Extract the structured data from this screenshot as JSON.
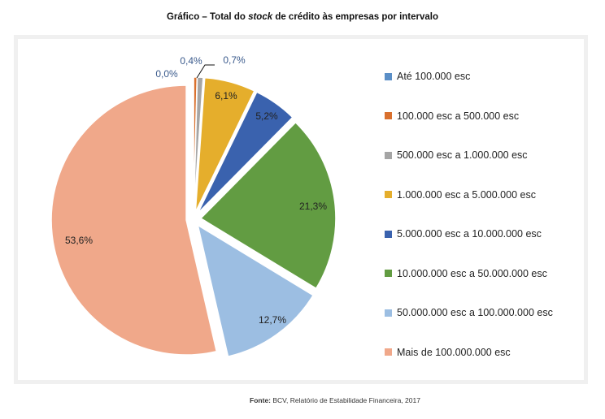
{
  "title": {
    "prefix": "Gráfico – Total do ",
    "italic": "stock",
    "suffix": " de crédito às empresas por intervalo"
  },
  "source": {
    "label": "Fonte:",
    "text": " BCV, Relatório de Estabilidade Financeira, 2017"
  },
  "legend": [
    {
      "label": "Até 100.000 esc",
      "color": "#5B8FC7"
    },
    {
      "label": "100.000 esc a 500.000 esc",
      "color": "#D9702E"
    },
    {
      "label": "500.000 esc a 1.000.000 esc",
      "color": "#A5A5A5"
    },
    {
      "label": "1.000.000 esc a 5.000.000 esc",
      "color": "#E5AE2C"
    },
    {
      "label": "5.000.000 esc a 10.000.000 esc",
      "color": "#3A62AE"
    },
    {
      "label": "10.000.000 esc a 50.000.000 esc",
      "color": "#629C42"
    },
    {
      "label": "50.000.000 esc a 100.000.000 esc",
      "color": "#9CBEE2"
    },
    {
      "label": "Mais de 100.000.000 esc",
      "color": "#F0A88A"
    }
  ],
  "chart_data": {
    "type": "pie",
    "title": "Gráfico – Total do stock de crédito às empresas por intervalo",
    "exploded": true,
    "start_angle_deg": 0,
    "direction": "clockwise",
    "categories": [
      "Até 100.000 esc",
      "100.000 esc a 500.000 esc",
      "500.000 esc a 1.000.000 esc",
      "1.000.000 esc a 5.000.000 esc",
      "5.000.000 esc a 10.000.000 esc",
      "10.000.000 esc a 50.000.000 esc",
      "50.000.000 esc a 100.000.000 esc",
      "Mais de 100.000.000 esc"
    ],
    "values": [
      0.0,
      0.4,
      0.7,
      6.1,
      5.2,
      21.3,
      12.7,
      53.6
    ],
    "data_labels": [
      "0,0%",
      "0,4%",
      "0,7%",
      "6,1%",
      "5,2%",
      "21,3%",
      "12,7%",
      "53,6%"
    ],
    "colors": [
      "#5B8FC7",
      "#D9702E",
      "#A5A5A5",
      "#E5AE2C",
      "#3A62AE",
      "#629C42",
      "#9CBEE2",
      "#F0A88A"
    ],
    "legend_position": "right",
    "unit": "%",
    "source": "BCV, Relatório de Estabilidade Financeira, 2017"
  }
}
